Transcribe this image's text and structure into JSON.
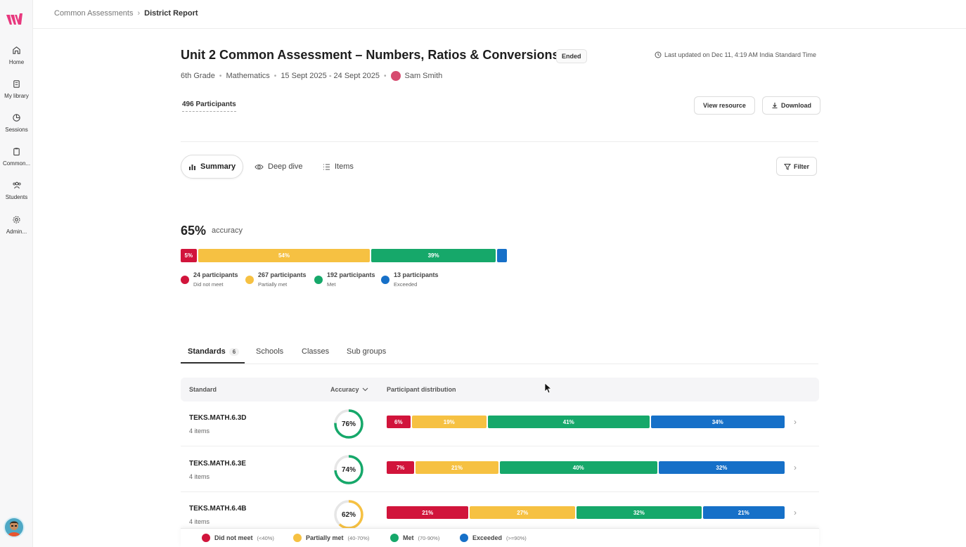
{
  "colors": {
    "red": "#d1143b",
    "yellow": "#f6c142",
    "green": "#16a86a",
    "blue": "#1670c8",
    "brand": "#e8387e"
  },
  "sidebar": {
    "items": [
      {
        "label": "Home",
        "icon": "home-icon"
      },
      {
        "label": "My library",
        "icon": "library-icon"
      },
      {
        "label": "Sessions",
        "icon": "sessions-icon"
      },
      {
        "label": "Common...",
        "icon": "clipboard-icon"
      },
      {
        "label": "Students",
        "icon": "students-icon"
      },
      {
        "label": "Admin...",
        "icon": "gear-icon"
      }
    ]
  },
  "breadcrumb": {
    "parent": "Common Assessments",
    "current": "District Report"
  },
  "header": {
    "title": "Unit 2 Common Assessment – Numbers, Ratios & Conversions",
    "status": "Ended",
    "updated": "Last updated on Dec 11, 4:19 AM India Standard Time",
    "grade": "6th Grade",
    "subject": "Mathematics",
    "dates": "15 Sept 2025 - 24 Sept 2025",
    "owner": "Sam Smith",
    "participants": "496 Participants",
    "view_resource": "View resource",
    "download": "Download"
  },
  "view_tabs": {
    "summary": "Summary",
    "deep_dive": "Deep dive",
    "items": "Items",
    "filter": "Filter"
  },
  "summary": {
    "accuracy_value": "65%",
    "accuracy_label": "accuracy",
    "distribution": [
      {
        "label": "5%",
        "pct": 5,
        "color": "#d1143b"
      },
      {
        "label": "54%",
        "pct": 54,
        "color": "#f6c142"
      },
      {
        "label": "39%",
        "pct": 39,
        "color": "#16a86a"
      },
      {
        "label": "",
        "pct": 3,
        "color": "#1670c8"
      }
    ],
    "legend": [
      {
        "count": "24 participants",
        "band": "Did not meet",
        "color": "#d1143b"
      },
      {
        "count": "267 participants",
        "band": "Partially met",
        "color": "#f6c142"
      },
      {
        "count": "192 participants",
        "band": "Met",
        "color": "#16a86a"
      },
      {
        "count": "13 participants",
        "band": "Exceeded",
        "color": "#1670c8"
      }
    ]
  },
  "subtabs": {
    "standards": "Standards",
    "standards_count": "6",
    "schools": "Schools",
    "classes": "Classes",
    "subgroups": "Sub groups"
  },
  "table": {
    "headers": {
      "standard": "Standard",
      "accuracy": "Accuracy",
      "distribution": "Participant distribution"
    },
    "rows": [
      {
        "name": "TEKS.MATH.6.3D",
        "items": "4 items",
        "accuracy": "76%",
        "acc_value": 76,
        "ring_color": "#16a86a",
        "segs": [
          {
            "label": "6%",
            "pct": 6,
            "color": "#d1143b"
          },
          {
            "label": "19%",
            "pct": 19,
            "color": "#f6c142"
          },
          {
            "label": "41%",
            "pct": 41,
            "color": "#16a86a"
          },
          {
            "label": "34%",
            "pct": 34,
            "color": "#1670c8"
          }
        ]
      },
      {
        "name": "TEKS.MATH.6.3E",
        "items": "4 items",
        "accuracy": "74%",
        "acc_value": 74,
        "ring_color": "#16a86a",
        "segs": [
          {
            "label": "7%",
            "pct": 7,
            "color": "#d1143b"
          },
          {
            "label": "21%",
            "pct": 21,
            "color": "#f6c142"
          },
          {
            "label": "40%",
            "pct": 40,
            "color": "#16a86a"
          },
          {
            "label": "32%",
            "pct": 32,
            "color": "#1670c8"
          }
        ]
      },
      {
        "name": "TEKS.MATH.6.4B",
        "items": "4 items",
        "accuracy": "62%",
        "acc_value": 62,
        "ring_color": "#f6c142",
        "segs": [
          {
            "label": "21%",
            "pct": 21,
            "color": "#d1143b"
          },
          {
            "label": "27%",
            "pct": 27,
            "color": "#f6c142"
          },
          {
            "label": "32%",
            "pct": 32,
            "color": "#16a86a"
          },
          {
            "label": "21%",
            "pct": 21,
            "color": "#1670c8"
          }
        ]
      }
    ]
  },
  "footer_legend": [
    {
      "label": "Did not meet",
      "range": "(<40%)",
      "color": "#d1143b"
    },
    {
      "label": "Partially met",
      "range": "(40-70%)",
      "color": "#f6c142"
    },
    {
      "label": "Met",
      "range": "(70-90%)",
      "color": "#16a86a"
    },
    {
      "label": "Exceeded",
      "range": "(>=90%)",
      "color": "#1670c8"
    }
  ]
}
